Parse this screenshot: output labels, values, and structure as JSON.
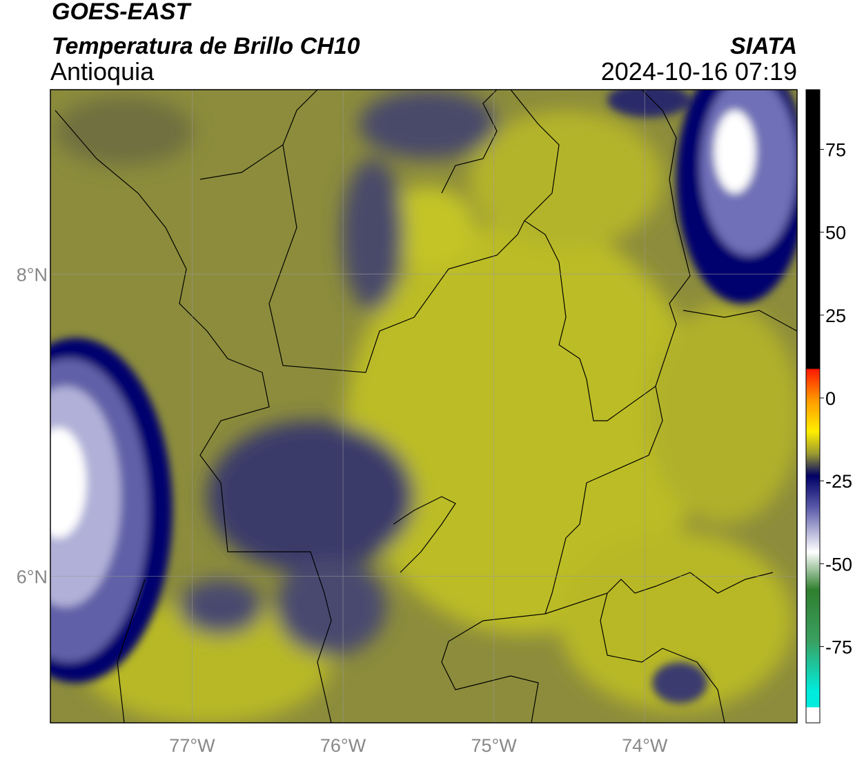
{
  "title": "GOES-EAST",
  "subtitle": "Temperatura de Brillo CH10",
  "region": "Antioquia",
  "source": "SIATA",
  "timestamp": "2024-10-16 07:19",
  "map": {
    "lonlim": [
      -77.94,
      -72.99
    ],
    "latlim": [
      5.03,
      9.22
    ],
    "lon_ticks": [
      {
        "value": -77,
        "label": "77°W"
      },
      {
        "value": -76,
        "label": "76°W"
      },
      {
        "value": -75,
        "label": "75°W"
      },
      {
        "value": -74,
        "label": "74°W"
      }
    ],
    "lat_ticks": [
      {
        "value": 8,
        "label": "8°N"
      },
      {
        "value": 6,
        "label": "6°N"
      }
    ]
  },
  "colorbar": {
    "clim": [
      -98,
      93
    ],
    "ticks": [
      75,
      50,
      25,
      0,
      -25,
      -50,
      -75
    ]
  }
}
